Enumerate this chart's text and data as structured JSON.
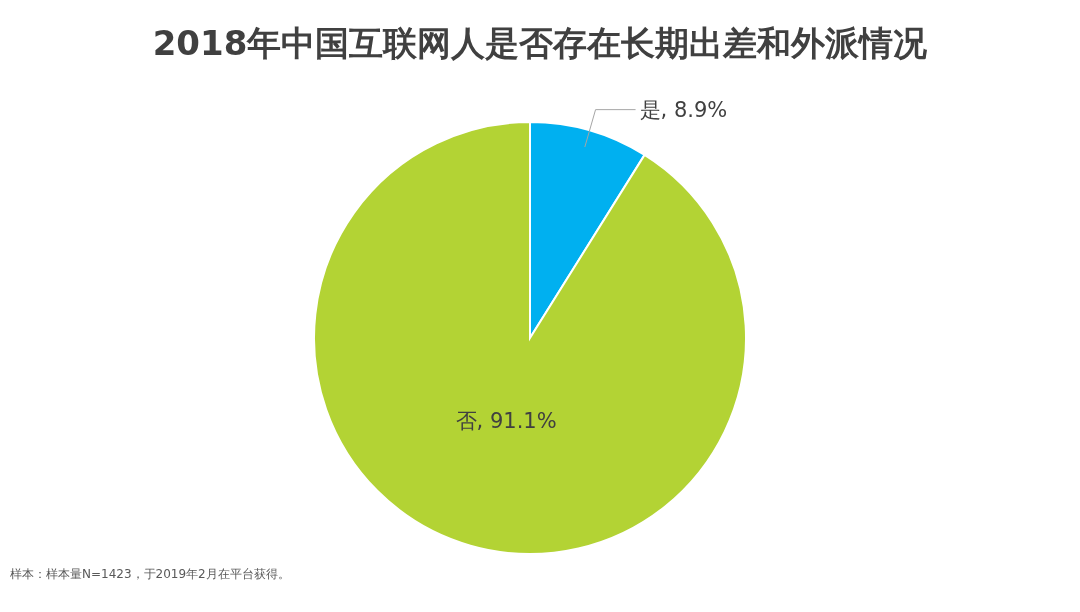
{
  "chart_data": {
    "type": "pie",
    "title": "2018年中国互联网人是否存在长期出差和外派情况",
    "categories": [
      "是",
      "否"
    ],
    "values": [
      8.9,
      91.1
    ],
    "colors": [
      "#00b0f0",
      "#b3d334"
    ],
    "value_labels": [
      ", 8.9%",
      ", 91.1%"
    ],
    "annotations": [
      "样本：样本量N=1423，于2019年2月在平台获得。"
    ]
  }
}
